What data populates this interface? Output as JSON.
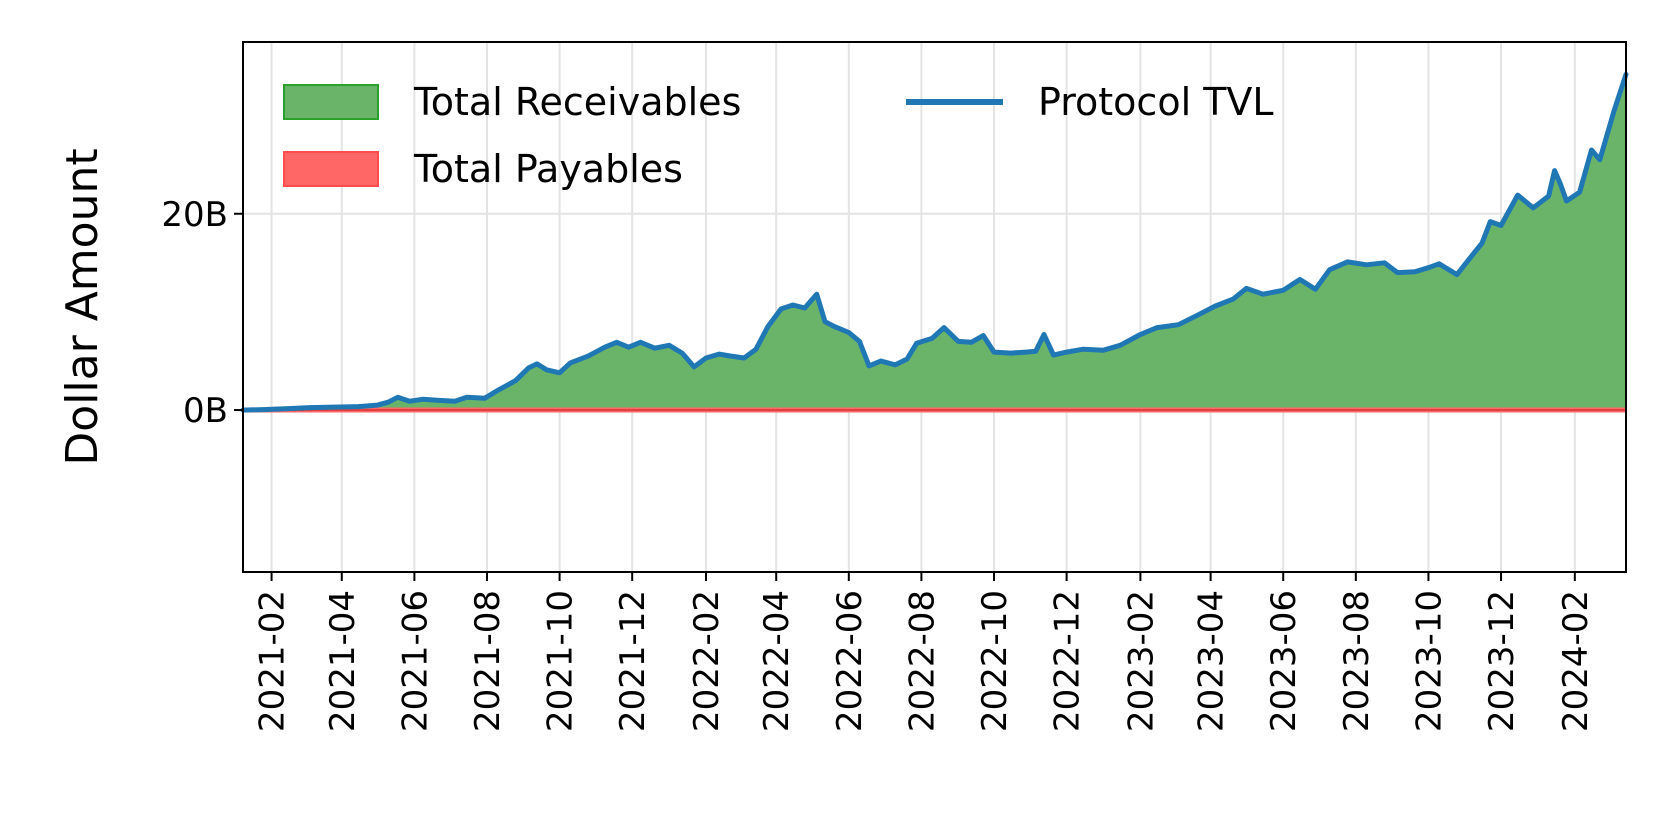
{
  "chart_data": {
    "type": "area",
    "ylabel": "Dollar Amount",
    "xlabel": "",
    "title": "",
    "ylim": [
      -16.5,
      37.5
    ],
    "xlim": [
      "2021-01-08",
      "2024-03-15"
    ],
    "y_ticks": [
      {
        "value": 0,
        "label": "0B"
      },
      {
        "value": 20,
        "label": "20B"
      }
    ],
    "x_ticks": [
      {
        "date": "2021-02-01",
        "label": "2021-02"
      },
      {
        "date": "2021-04-01",
        "label": "2021-04"
      },
      {
        "date": "2021-06-01",
        "label": "2021-06"
      },
      {
        "date": "2021-08-01",
        "label": "2021-08"
      },
      {
        "date": "2021-10-01",
        "label": "2021-10"
      },
      {
        "date": "2021-12-01",
        "label": "2021-12"
      },
      {
        "date": "2022-02-01",
        "label": "2022-02"
      },
      {
        "date": "2022-04-01",
        "label": "2022-04"
      },
      {
        "date": "2022-06-01",
        "label": "2022-06"
      },
      {
        "date": "2022-08-01",
        "label": "2022-08"
      },
      {
        "date": "2022-10-01",
        "label": "2022-10"
      },
      {
        "date": "2022-12-01",
        "label": "2022-12"
      },
      {
        "date": "2023-02-01",
        "label": "2023-02"
      },
      {
        "date": "2023-04-01",
        "label": "2023-04"
      },
      {
        "date": "2023-06-01",
        "label": "2023-06"
      },
      {
        "date": "2023-08-01",
        "label": "2023-08"
      },
      {
        "date": "2023-10-01",
        "label": "2023-10"
      },
      {
        "date": "2023-12-01",
        "label": "2023-12"
      },
      {
        "date": "2024-02-01",
        "label": "2024-02"
      }
    ],
    "grid": true,
    "legend_position": "top-left",
    "series": [
      {
        "name": "Total Receivables",
        "kind": "area",
        "color": "#2ca02c",
        "fill_color": "#6ab46a",
        "values_same_as": "Protocol TVL"
      },
      {
        "name": "Total Payables",
        "kind": "area",
        "color": "#ff0000",
        "fill_color": "#ff6666",
        "constant_value": 0
      },
      {
        "name": "Protocol TVL",
        "kind": "line",
        "color": "#1f77b4",
        "unit": "billion USD",
        "points": [
          [
            "2021-01-08",
            0.0
          ],
          [
            "2021-01-25",
            0.05
          ],
          [
            "2021-02-15",
            0.15
          ],
          [
            "2021-03-05",
            0.25
          ],
          [
            "2021-03-25",
            0.3
          ],
          [
            "2021-04-15",
            0.35
          ],
          [
            "2021-05-01",
            0.5
          ],
          [
            "2021-05-10",
            0.8
          ],
          [
            "2021-05-18",
            1.3
          ],
          [
            "2021-05-28",
            0.9
          ],
          [
            "2021-06-08",
            1.1
          ],
          [
            "2021-06-20",
            1.0
          ],
          [
            "2021-07-05",
            0.9
          ],
          [
            "2021-07-15",
            1.3
          ],
          [
            "2021-07-30",
            1.2
          ],
          [
            "2021-08-10",
            2.0
          ],
          [
            "2021-08-25",
            3.0
          ],
          [
            "2021-09-05",
            4.3
          ],
          [
            "2021-09-12",
            4.7
          ],
          [
            "2021-09-20",
            4.1
          ],
          [
            "2021-10-01",
            3.8
          ],
          [
            "2021-10-10",
            4.8
          ],
          [
            "2021-10-25",
            5.5
          ],
          [
            "2021-11-08",
            6.4
          ],
          [
            "2021-11-18",
            6.9
          ],
          [
            "2021-11-28",
            6.4
          ],
          [
            "2021-12-08",
            6.9
          ],
          [
            "2021-12-20",
            6.3
          ],
          [
            "2022-01-01",
            6.6
          ],
          [
            "2022-01-12",
            5.8
          ],
          [
            "2022-01-22",
            4.4
          ],
          [
            "2022-02-01",
            5.3
          ],
          [
            "2022-02-12",
            5.7
          ],
          [
            "2022-02-22",
            5.5
          ],
          [
            "2022-03-05",
            5.3
          ],
          [
            "2022-03-15",
            6.2
          ],
          [
            "2022-03-25",
            8.5
          ],
          [
            "2022-04-05",
            10.3
          ],
          [
            "2022-04-15",
            10.7
          ],
          [
            "2022-04-25",
            10.4
          ],
          [
            "2022-05-05",
            11.8
          ],
          [
            "2022-05-12",
            9.0
          ],
          [
            "2022-05-20",
            8.5
          ],
          [
            "2022-06-01",
            7.9
          ],
          [
            "2022-06-10",
            7.0
          ],
          [
            "2022-06-18",
            4.5
          ],
          [
            "2022-06-28",
            5.0
          ],
          [
            "2022-07-10",
            4.6
          ],
          [
            "2022-07-20",
            5.2
          ],
          [
            "2022-07-28",
            6.8
          ],
          [
            "2022-08-10",
            7.3
          ],
          [
            "2022-08-20",
            8.4
          ],
          [
            "2022-09-01",
            7.0
          ],
          [
            "2022-09-12",
            6.9
          ],
          [
            "2022-09-22",
            7.6
          ],
          [
            "2022-10-01",
            5.9
          ],
          [
            "2022-10-15",
            5.8
          ],
          [
            "2022-10-28",
            5.9
          ],
          [
            "2022-11-05",
            6.0
          ],
          [
            "2022-11-12",
            7.7
          ],
          [
            "2022-11-20",
            5.6
          ],
          [
            "2022-12-01",
            5.9
          ],
          [
            "2022-12-15",
            6.2
          ],
          [
            "2023-01-01",
            6.1
          ],
          [
            "2023-01-15",
            6.6
          ],
          [
            "2023-02-01",
            7.7
          ],
          [
            "2023-02-15",
            8.4
          ],
          [
            "2023-03-05",
            8.7
          ],
          [
            "2023-03-20",
            9.6
          ],
          [
            "2023-04-05",
            10.6
          ],
          [
            "2023-04-20",
            11.3
          ],
          [
            "2023-05-01",
            12.4
          ],
          [
            "2023-05-15",
            11.8
          ],
          [
            "2023-06-01",
            12.2
          ],
          [
            "2023-06-15",
            13.3
          ],
          [
            "2023-06-28",
            12.3
          ],
          [
            "2023-07-10",
            14.3
          ],
          [
            "2023-07-25",
            15.1
          ],
          [
            "2023-08-10",
            14.8
          ],
          [
            "2023-08-25",
            15.0
          ],
          [
            "2023-09-05",
            14.0
          ],
          [
            "2023-09-20",
            14.1
          ],
          [
            "2023-10-01",
            14.5
          ],
          [
            "2023-10-10",
            14.9
          ],
          [
            "2023-10-25",
            13.8
          ],
          [
            "2023-11-05",
            15.5
          ],
          [
            "2023-11-15",
            17.0
          ],
          [
            "2023-11-22",
            19.2
          ],
          [
            "2023-12-01",
            18.8
          ],
          [
            "2023-12-15",
            21.9
          ],
          [
            "2023-12-28",
            20.6
          ],
          [
            "2024-01-10",
            21.8
          ],
          [
            "2024-01-15",
            24.4
          ],
          [
            "2024-01-20",
            23.0
          ],
          [
            "2024-01-25",
            21.3
          ],
          [
            "2024-02-05",
            22.2
          ],
          [
            "2024-02-15",
            26.5
          ],
          [
            "2024-02-22",
            25.5
          ],
          [
            "2024-03-05",
            30.5
          ],
          [
            "2024-03-15",
            34.2
          ]
        ]
      }
    ]
  }
}
